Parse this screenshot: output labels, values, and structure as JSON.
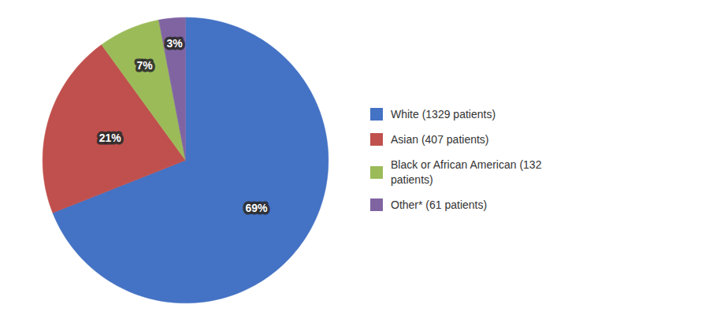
{
  "chart_data": {
    "type": "pie",
    "categories": [
      "White (1329 patients)",
      "Asian (407 patients)",
      "Black or African American (132\n patients)",
      "Other* (61 patients)"
    ],
    "values": [
      69,
      21,
      7,
      3
    ],
    "value_labels": [
      "69%",
      "21%",
      "7%",
      "3%"
    ],
    "colors": [
      "#4472C4",
      "#C0504D",
      "#9BBB59",
      "#8064A2"
    ],
    "data_labels": true,
    "legend": "right"
  }
}
